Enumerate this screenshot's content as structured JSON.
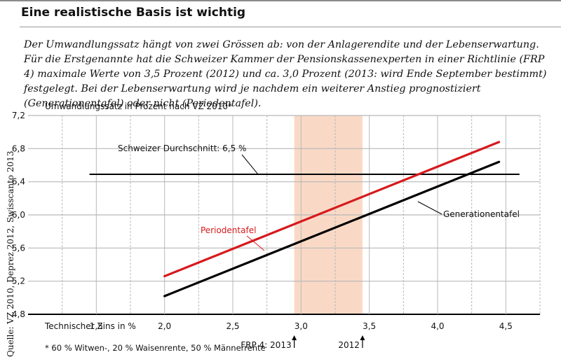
{
  "header": {
    "title": "Eine realistische Basis ist wichtig",
    "intro": "Der Umwandlungssatz hängt von zwei Grössen ab: von der Anlagerendite und der Lebenserwartung. Für die Erstgenannte hat die Schweizer Kammer der Pensionskassenexperten in einer Richtlinie (FRP 4) maximale Werte von 3,5 Prozent (2012) und ca. 3,0 Prozent (2013: wird Ende September bestimmt) festgelegt. Bei der Lebenserwartung wird je nachdem ein weiterer Anstieg prognostiziert (Generationentafel) oder nicht (Periodentafel)."
  },
  "source": "Quelle: VZ 2010, Deprez 2012, Swisscanto 2013",
  "colors": {
    "periodentafel": "#d7191c",
    "generationentafel": "#000000",
    "highlight_band": "#f9d9c6",
    "grid": "#b8b8b8"
  },
  "chart_data": {
    "type": "line",
    "ylabel": "Umwandlungssatz in Prozent nach VZ 2010*",
    "xlabel": "Technischer Zins in %",
    "xlim": [
      1.0,
      4.75
    ],
    "ylim": [
      4.8,
      7.2
    ],
    "x_ticks": [
      "1,5",
      "2,0",
      "2,5",
      "3,0",
      "3,5",
      "4,0",
      "4,5"
    ],
    "x_tick_values": [
      1.5,
      2.0,
      2.5,
      3.0,
      3.5,
      4.0,
      4.5
    ],
    "y_ticks": [
      "7,2",
      "6,8",
      "6,4",
      "6,0",
      "5,6",
      "5,2",
      "4,8"
    ],
    "y_tick_values": [
      7.2,
      6.8,
      6.4,
      6.0,
      5.6,
      5.2,
      4.8
    ],
    "grid": true,
    "highlight_band": {
      "x_from": 2.95,
      "x_to": 3.45
    },
    "series": [
      {
        "name": "Periodentafel",
        "color": "#d7191c",
        "x": [
          2.0,
          4.45
        ],
        "y": [
          5.26,
          6.88
        ]
      },
      {
        "name": "Generationentafel",
        "color": "#000000",
        "x": [
          2.0,
          4.45
        ],
        "y": [
          5.02,
          6.64
        ]
      }
    ],
    "reference_line": {
      "label": "Schweizer Durchschnitt: 6,5 %",
      "value": 6.49,
      "x_from": 1.45,
      "x_to": 4.6
    },
    "markers": [
      {
        "label": "FRP 4: 2013",
        "x": 2.95
      },
      {
        "label": "2012",
        "x": 3.45
      }
    ],
    "footnote": "* 60 % Witwen-, 20 % Waisenrente, 50 % Männerrente"
  }
}
